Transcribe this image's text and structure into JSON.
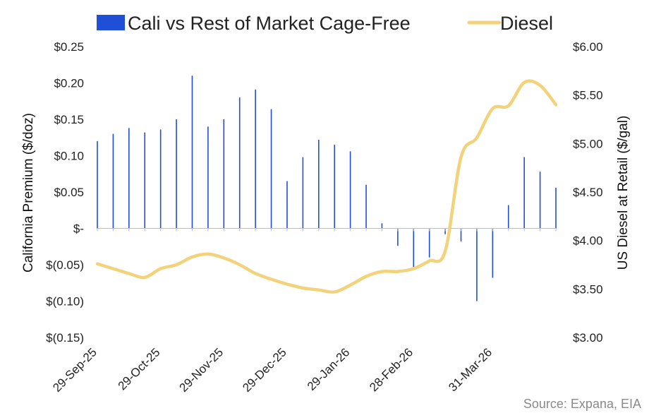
{
  "chart_data": {
    "type": "bar+line",
    "legend": {
      "bar_label": "Cali vs Rest of Market Cage-Free",
      "line_label": "Diesel",
      "placement": "top"
    },
    "left_axis": {
      "title": "California Premium ($/doz)",
      "ylim": [
        -0.15,
        0.25
      ],
      "ticks": [
        0.25,
        0.2,
        0.15,
        0.1,
        0.05,
        0,
        -0.05,
        -0.1,
        -0.15
      ],
      "tick_labels": [
        "$0.25",
        "$0.20",
        "$0.15",
        "$0.10",
        "$0.05",
        "$-",
        "$(0.05)",
        "$(0.10)",
        "$(0.15)"
      ]
    },
    "right_axis": {
      "title": "US Diesel at Retail ($/gal)",
      "ylim": [
        3.0,
        6.0
      ],
      "ticks": [
        6.0,
        5.5,
        5.0,
        4.5,
        4.0,
        3.5,
        3.0
      ],
      "tick_labels": [
        "$6.00",
        "$5.50",
        "$5.00",
        "$4.50",
        "$4.00",
        "$3.50",
        "$3.00"
      ]
    },
    "x_axis": {
      "tick_labels": [
        "29-Sep-25",
        "29-Oct-25",
        "29-Nov-25",
        "29-Dec-25",
        "29-Jan-26",
        "28-Feb-26",
        "31-Mar-26"
      ],
      "tick_positions": [
        0,
        4,
        8,
        12,
        16,
        20,
        25
      ],
      "n_weeks": 29
    },
    "series": [
      {
        "name": "Cali vs Rest of Market Cage-Free",
        "type": "bar",
        "color": "#1f4fd6",
        "values": [
          0.12,
          0.13,
          0.138,
          0.132,
          0.136,
          0.15,
          0.21,
          0.14,
          0.15,
          0.18,
          0.191,
          0.164,
          0.065,
          0.098,
          0.122,
          0.115,
          0.106,
          0.06,
          0.007,
          -0.024,
          -0.053,
          -0.04,
          -0.008,
          -0.018,
          -0.1,
          -0.068,
          0.032,
          0.098,
          0.078,
          0.056
        ]
      },
      {
        "name": "Diesel",
        "type": "line",
        "color": "#f2d27a",
        "values": [
          3.76,
          3.71,
          3.66,
          3.62,
          3.71,
          3.75,
          3.83,
          3.86,
          3.82,
          3.75,
          3.66,
          3.6,
          3.55,
          3.51,
          3.49,
          3.47,
          3.54,
          3.63,
          3.68,
          3.68,
          3.71,
          3.79,
          3.89,
          4.86,
          5.06,
          5.36,
          5.39,
          5.63,
          5.6,
          5.4
        ]
      }
    ],
    "source": "Source: Expana, EIA"
  }
}
